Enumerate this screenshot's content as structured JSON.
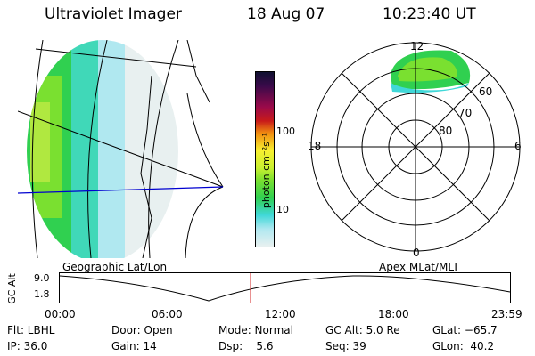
{
  "header": {
    "instrument": "Ultraviolet Imager",
    "date": "18 Aug 07",
    "time": "10:23:40 UT"
  },
  "colorbar": {
    "unit_label": "photon cm⁻²s⁻¹",
    "ticks": [
      "100",
      "10"
    ],
    "colors": [
      "#101030",
      "#3a0a4a",
      "#6a0a5a",
      "#9a0a4a",
      "#c81a1a",
      "#e04a10",
      "#f08c10",
      "#f8c830",
      "#f8f030",
      "#c8f030",
      "#7ae030",
      "#30d050",
      "#30d0a0",
      "#40d8d8",
      "#b0e8f0",
      "#e8f0f0"
    ]
  },
  "polar_plot": {
    "labels": {
      "top": "12",
      "bottom": "0",
      "left": "18",
      "right": "6"
    },
    "rings": [
      "60",
      "70",
      "80"
    ]
  },
  "timeline": {
    "y_label": "GC Alt",
    "y_ticks": [
      "9.0",
      "1.8"
    ],
    "left_label": "Geographic Lat/Lon",
    "right_label": "Apex  MLat/MLT",
    "x_ticks": [
      "00:00",
      "06:00",
      "12:00",
      "18:00",
      "23:59"
    ]
  },
  "status": {
    "filter": "Flt: LBHL",
    "door": "Door: Open",
    "mode": "Mode: Normal",
    "gc_alt": "GC Alt: 5.0 Re",
    "glat": "GLat: −65.7",
    "ip": "IP: 36.0",
    "gain": "Gain: 14",
    "dsp": "Dsp:    5.6",
    "seq": "Seq: 39",
    "glon": "GLon:  40.2"
  }
}
